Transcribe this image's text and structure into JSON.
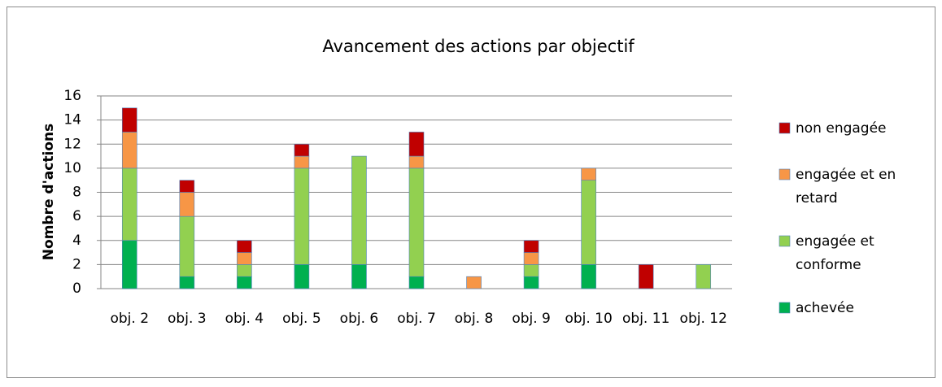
{
  "chart_data": {
    "type": "stacked-bar",
    "title": "Avancement des actions par objectif",
    "y_label": "Nombre d'actions",
    "categories": [
      "obj. 2",
      "obj. 3",
      "obj. 4",
      "obj. 5",
      "obj. 6",
      "obj. 7",
      "obj. 8",
      "obj. 9",
      "obj. 10",
      "obj. 11",
      "obj. 12"
    ],
    "series": [
      {
        "name": "achevée",
        "color": "#00b050",
        "values": [
          4,
          1,
          1,
          2,
          2,
          1,
          0,
          1,
          2,
          0,
          0
        ]
      },
      {
        "name": "engagée et conforme",
        "color": "#92d050",
        "values": [
          6,
          5,
          1,
          8,
          9,
          9,
          0,
          1,
          7,
          0,
          2
        ]
      },
      {
        "name": "engagée et en retard",
        "color": "#f79646",
        "values": [
          3,
          2,
          1,
          1,
          0,
          1,
          1,
          1,
          1,
          0,
          0
        ]
      },
      {
        "name": "non engagée",
        "color": "#c00000",
        "values": [
          2,
          1,
          1,
          1,
          0,
          2,
          0,
          1,
          0,
          2,
          0
        ]
      }
    ],
    "ylim": [
      0,
      16
    ],
    "yticks": [
      0,
      2,
      4,
      6,
      8,
      10,
      12,
      14,
      16
    ],
    "grid": true,
    "legend": "right"
  }
}
